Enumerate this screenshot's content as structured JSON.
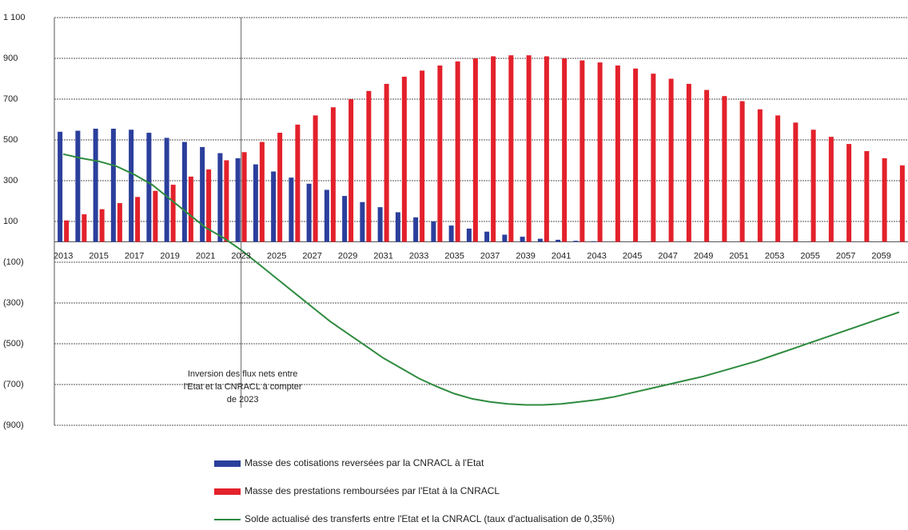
{
  "chart_data": {
    "type": "bar",
    "categories": [
      "2013",
      null,
      "2015",
      null,
      "2017",
      null,
      "2019",
      null,
      "2021",
      null,
      "2023",
      null,
      "2025",
      null,
      "2027",
      null,
      "2029",
      null,
      "2031",
      null,
      "2033",
      null,
      "2035",
      null,
      "2037",
      null,
      "2039",
      null,
      "2041",
      null,
      "2043",
      null,
      "2045",
      null,
      "2047",
      null,
      "2049",
      null,
      "2051",
      null,
      "2053",
      null,
      "2055",
      null,
      "2057",
      null,
      "2059",
      null
    ],
    "series": [
      {
        "name": "Masse des cotisations reversées par la CNRACL à l'Etat",
        "type": "bar",
        "color": "#2b3f9c",
        "values": [
          540,
          545,
          555,
          555,
          550,
          535,
          510,
          490,
          465,
          435,
          410,
          380,
          345,
          315,
          285,
          255,
          225,
          195,
          170,
          145,
          120,
          100,
          80,
          65,
          50,
          35,
          25,
          15,
          10,
          5,
          3,
          0,
          0,
          0,
          0,
          0,
          0,
          0,
          0,
          0,
          0,
          0,
          0,
          0,
          0,
          0,
          0,
          0
        ]
      },
      {
        "name": "Masse des prestations remboursées par l'Etat à la CNRACL",
        "type": "bar",
        "color": "#e3212b",
        "values": [
          105,
          135,
          160,
          190,
          220,
          250,
          280,
          320,
          355,
          400,
          440,
          490,
          535,
          575,
          620,
          660,
          700,
          740,
          775,
          810,
          840,
          865,
          885,
          900,
          910,
          915,
          915,
          910,
          900,
          890,
          880,
          865,
          850,
          825,
          800,
          775,
          745,
          715,
          690,
          650,
          620,
          585,
          550,
          515,
          480,
          445,
          410,
          375
        ]
      },
      {
        "name": "Solde actualisé des transferts entre l'Etat et la CNRACL (taux d'actualisation de 0,35%)",
        "type": "line",
        "color": "#2e8b3e",
        "values": [
          430,
          410,
          395,
          370,
          330,
          280,
          210,
          140,
          70,
          20,
          -40,
          -110,
          -180,
          -250,
          -320,
          -390,
          -450,
          -510,
          -570,
          -620,
          -670,
          -710,
          -745,
          -770,
          -785,
          -795,
          -800,
          -800,
          -795,
          -785,
          -775,
          -760,
          -740,
          -720,
          -700,
          -680,
          -660,
          -635,
          -610,
          -585,
          -555,
          -525,
          -495,
          -465,
          -435,
          -405,
          -375,
          -345
        ]
      }
    ],
    "ylim": [
      -900,
      1100
    ],
    "yticks": [
      {
        "value": -900,
        "label": "(900)"
      },
      {
        "value": -700,
        "label": "(700)"
      },
      {
        "value": -500,
        "label": "(500)"
      },
      {
        "value": -300,
        "label": "(300)"
      },
      {
        "value": -100,
        "label": "(100)"
      },
      100,
      300,
      500,
      700,
      900,
      {
        "value": 1100,
        "label": "1 100"
      }
    ],
    "grid": true,
    "annotation": {
      "x": "2023",
      "lines": [
        "Inversion des flux nets entre",
        "l'Etat et la CNRACL à compter",
        "de 2023"
      ]
    }
  }
}
